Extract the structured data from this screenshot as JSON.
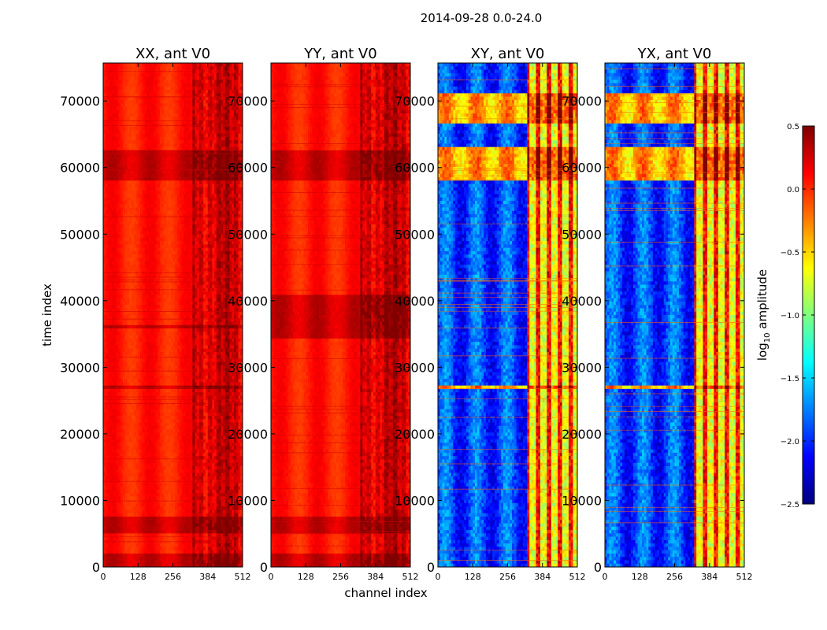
{
  "figure_title": "2014-09-28 0.0-24.0",
  "shared_x_label": "channel index",
  "shared_y_label": "time index",
  "chart_data": [
    {
      "type": "heatmap",
      "title": "XX, ant V0",
      "xlabel": "channel index",
      "ylabel": "time index",
      "xlim": [
        0,
        512
      ],
      "ylim": [
        0,
        75700
      ],
      "x_ticks": [
        0,
        128,
        256,
        384,
        512
      ],
      "y_ticks": [
        0,
        10000,
        20000,
        30000,
        40000,
        50000,
        60000,
        70000
      ],
      "value_range_log10": [
        -0.5,
        0.5
      ],
      "features": {
        "high_band_channel_range": [
          325,
          512
        ],
        "bright_time_bands": [
          [
            0,
            2000
          ],
          [
            5000,
            7700
          ],
          [
            57800,
            62500
          ],
          [
            26500,
            27200
          ],
          [
            35800,
            36200
          ]
        ]
      }
    },
    {
      "type": "heatmap",
      "title": "YY, ant V0",
      "xlabel": "channel index",
      "ylabel": "time index",
      "xlim": [
        0,
        512
      ],
      "ylim": [
        0,
        75700
      ],
      "x_ticks": [
        0,
        128,
        256,
        384,
        512
      ],
      "y_ticks": [
        0,
        10000,
        20000,
        30000,
        40000,
        50000,
        60000,
        70000
      ],
      "value_range_log10": [
        -0.6,
        0.5
      ],
      "features": {
        "high_band_channel_range": [
          325,
          512
        ],
        "bright_time_bands": [
          [
            0,
            2000
          ],
          [
            5000,
            7700
          ],
          [
            57800,
            62500
          ],
          [
            34500,
            41000
          ]
        ]
      }
    },
    {
      "type": "heatmap",
      "title": "XY, ant V0",
      "xlabel": "channel index",
      "ylabel": "time index",
      "xlim": [
        0,
        512
      ],
      "ylim": [
        0,
        75700
      ],
      "x_ticks": [
        0,
        128,
        256,
        384,
        512
      ],
      "y_ticks": [
        0,
        10000,
        20000,
        30000,
        40000,
        50000,
        60000,
        70000
      ],
      "value_range_log10": [
        -2.5,
        0.5
      ],
      "features": {
        "high_band_channel_range": [
          325,
          512
        ],
        "bright_time_bands": [
          [
            57800,
            63000
          ],
          [
            66500,
            71000
          ],
          [
            26500,
            27200
          ]
        ]
      }
    },
    {
      "type": "heatmap",
      "title": "YX, ant V0",
      "xlabel": "channel index",
      "ylabel": "time index",
      "xlim": [
        0,
        512
      ],
      "ylim": [
        0,
        75700
      ],
      "x_ticks": [
        0,
        128,
        256,
        384,
        512
      ],
      "y_ticks": [
        0,
        10000,
        20000,
        30000,
        40000,
        50000,
        60000,
        70000
      ],
      "value_range_log10": [
        -2.5,
        0.5
      ],
      "features": {
        "high_band_channel_range": [
          325,
          512
        ],
        "bright_time_bands": [
          [
            57800,
            63000
          ],
          [
            66500,
            71000
          ],
          [
            26500,
            27200
          ]
        ]
      }
    }
  ],
  "colorbar": {
    "label_main": "log",
    "label_sub": "10",
    "label_rest": " amplitude",
    "colormap": "jet",
    "min": -2.5,
    "max": 0.5,
    "ticks": [
      0.5,
      0.0,
      -0.5,
      -1.0,
      -1.5,
      -2.0,
      -2.5
    ],
    "tick_labels": [
      "0.5",
      "0.0",
      "−0.5",
      "−1.0",
      "−1.5",
      "−2.0",
      "−2.5"
    ],
    "colors": [
      "#00007f",
      "#0000ff",
      "#007fff",
      "#00ffff",
      "#7fff7f",
      "#ffff00",
      "#ff7f00",
      "#ff0000",
      "#7f0000"
    ]
  }
}
